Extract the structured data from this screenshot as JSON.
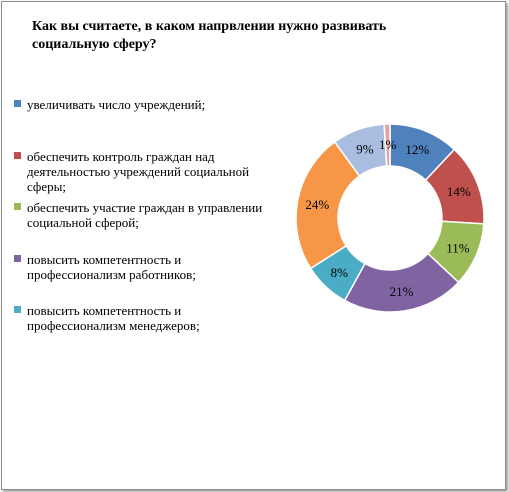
{
  "chart_data": {
    "type": "pie",
    "title": "Как вы считаете,  в каком напрвлении нужно развивать социальную  сферу?",
    "legend_position": "left",
    "slices": [
      {
        "label": "увеличивать число учреждений;",
        "value": 12,
        "value_label": "12%",
        "color": "#4f81bd"
      },
      {
        "label": "обеспечить контроль граждан над деятельностью учреждений социальной сферы;",
        "value": 14,
        "value_label": "14%",
        "color": "#c0504d"
      },
      {
        "label": "обеспечить участие граждан в управлении социальной сферой;",
        "value": 11,
        "value_label": "11%",
        "color": "#9bbb59"
      },
      {
        "label": "повысить компетентность и профессионализм работников;",
        "value": 21,
        "value_label": "21%",
        "color": "#8064a2"
      },
      {
        "label": "повысить компетентность и профессионализм менеджеров;",
        "value": 8,
        "value_label": "8%",
        "color": "#4bacc6"
      },
      {
        "label": "",
        "value": 24,
        "value_label": "24%",
        "color": "#f79646"
      },
      {
        "label": "",
        "value": 9,
        "value_label": "9%",
        "color": "#a9bde0"
      },
      {
        "label": "",
        "value": 1,
        "value_label": "1%",
        "color": "#e3a5a4"
      }
    ]
  }
}
